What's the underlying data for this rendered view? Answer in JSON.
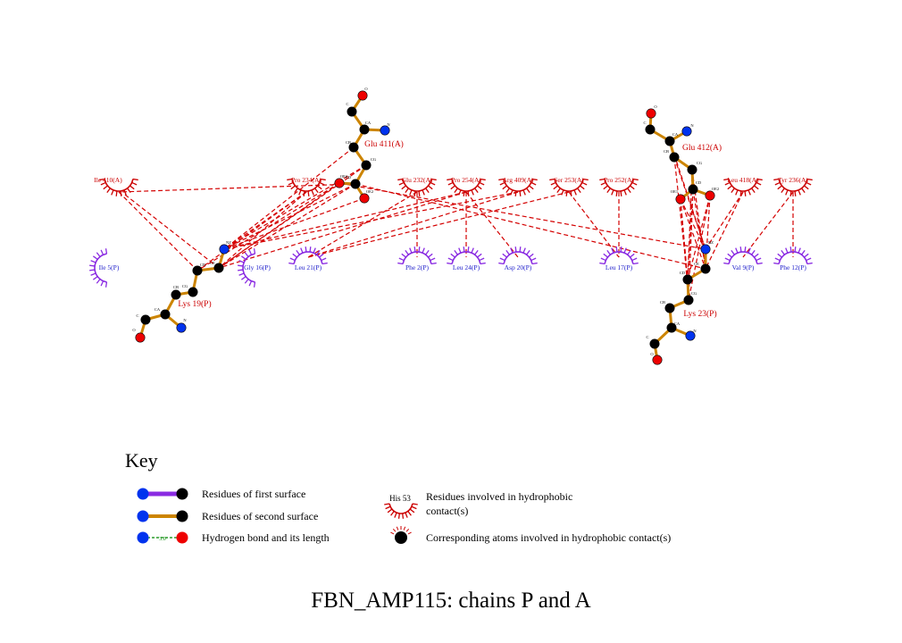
{
  "colors": {
    "red_residue": "#cc0000",
    "blue_residue": "#2222cc",
    "contact_line": "#d40000",
    "first_surface_bond": "#8a2be2",
    "second_surface_bond": "#cc8400",
    "hbond": "#008800",
    "oxygen": "#ee0000",
    "nitrogen": "#0033ee",
    "carbon": "#000000"
  },
  "ligands": {
    "lys19": {
      "label": "Lys 19(P)",
      "atoms": [
        "O",
        "C",
        "CA",
        "N",
        "CB",
        "CG",
        "CD",
        "CE",
        "NZ"
      ]
    },
    "glu411": {
      "label": "Glu 411(A)",
      "atoms": [
        "O",
        "C",
        "CA",
        "N",
        "CB",
        "CG",
        "CD",
        "OE1",
        "OE2"
      ]
    },
    "glu412": {
      "label": "Glu 412(A)",
      "atoms": [
        "O",
        "C",
        "N",
        "CA",
        "CB",
        "CG",
        "CD",
        "OE1",
        "OE2"
      ]
    },
    "lys23": {
      "label": "Lys 23(P)",
      "atoms": [
        "NZ",
        "CE",
        "CD",
        "CG",
        "CB",
        "CA",
        "N",
        "C",
        "O"
      ]
    }
  },
  "hydrophobic_residues": [
    {
      "id": "ile410",
      "label": "Ile 410(A)",
      "chain": "A"
    },
    {
      "id": "pro234",
      "label": "Pro 234(A)",
      "chain": "A"
    },
    {
      "id": "glu232",
      "label": "Glu 232(A)",
      "chain": "A"
    },
    {
      "id": "pro254",
      "label": "Pro 254(A)",
      "chain": "A"
    },
    {
      "id": "arg409",
      "label": "Arg 409(A)",
      "chain": "A"
    },
    {
      "id": "ser253",
      "label": "Ser 253(A)",
      "chain": "A"
    },
    {
      "id": "pro252",
      "label": "Pro 252(A)",
      "chain": "A"
    },
    {
      "id": "leu418",
      "label": "Leu 418(A)",
      "chain": "A"
    },
    {
      "id": "tyr236",
      "label": "Tyr 236(A)",
      "chain": "A"
    },
    {
      "id": "ile5",
      "label": "Ile 5(P)",
      "chain": "P"
    },
    {
      "id": "gly16",
      "label": "Gly 16(P)",
      "chain": "P"
    },
    {
      "id": "leu21",
      "label": "Leu 21(P)",
      "chain": "P"
    },
    {
      "id": "phe2",
      "label": "Phe 2(P)",
      "chain": "P"
    },
    {
      "id": "leu24",
      "label": "Leu 24(P)",
      "chain": "P"
    },
    {
      "id": "asp20",
      "label": "Asp 20(P)",
      "chain": "P"
    },
    {
      "id": "leu17",
      "label": "Leu 17(P)",
      "chain": "P"
    },
    {
      "id": "val9",
      "label": "Val 9(P)",
      "chain": "P"
    },
    {
      "id": "phe12",
      "label": "Phe 12(P)",
      "chain": "P"
    }
  ],
  "key": {
    "title": "Key",
    "first_surface": "Residues of first surface",
    "second_surface": "Residues of second surface",
    "hbond": "Hydrogen bond and its length",
    "hbond_length": "3.0",
    "hydrophobic_example": "His 53",
    "hydrophobic_residues_line1": "Residues involved in hydrophobic",
    "hydrophobic_residues_line2": "contact(s)",
    "hydrophobic_atoms": "Corresponding atoms involved in hydrophobic contact(s)"
  },
  "caption": "FBN_AMP115: chains P and A"
}
